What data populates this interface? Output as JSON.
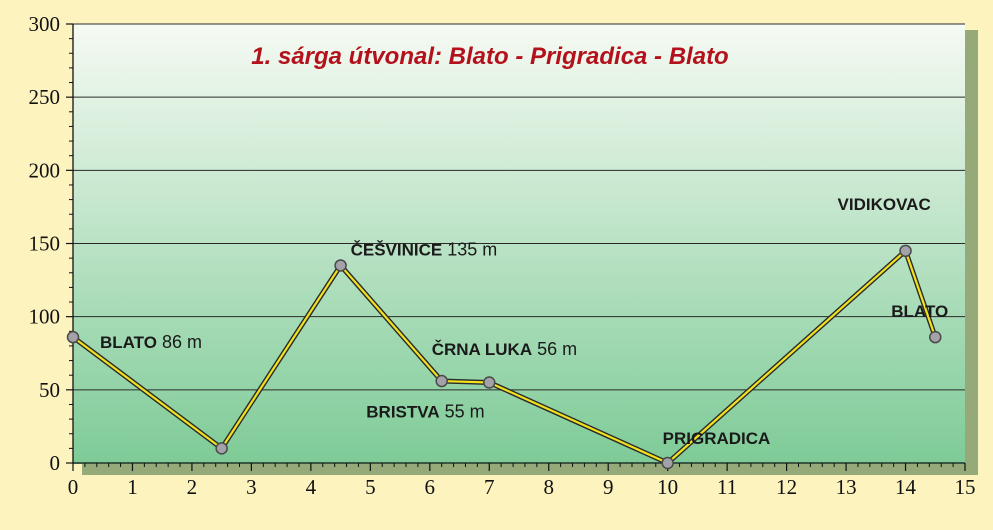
{
  "chart_data": {
    "type": "line",
    "title": "1. sárga útvonal: Blato - Prigradica - Blato",
    "xlabel": "",
    "ylabel": "",
    "xlim": [
      0,
      15
    ],
    "ylim": [
      0,
      300
    ],
    "x_ticks": [
      0,
      1,
      2,
      3,
      4,
      5,
      6,
      7,
      8,
      9,
      10,
      11,
      12,
      13,
      14,
      15
    ],
    "y_ticks": [
      0,
      50,
      100,
      150,
      200,
      250,
      300
    ],
    "grid": "horizontal",
    "series": [
      {
        "x": [
          0,
          2.5,
          4.5,
          6.2,
          7,
          10,
          14,
          14.5
        ],
        "y": [
          86,
          10,
          135,
          56,
          55,
          0,
          145,
          86
        ]
      }
    ],
    "annotations": [
      {
        "name": "BLATO",
        "elevation": "86 m",
        "x": 0,
        "y": 86
      },
      {
        "name": "ČEŠVINICE",
        "elevation": "135 m",
        "x": 4.5,
        "y": 135
      },
      {
        "name": "ČRNA LUKA",
        "elevation": "56 m",
        "x": 6.2,
        "y": 56
      },
      {
        "name": "BRISTVA",
        "elevation": "55 m",
        "x": 7,
        "y": 55
      },
      {
        "name": "PRIGRADICA",
        "elevation": "",
        "x": 10,
        "y": 0
      },
      {
        "name": "VIDIKOVAC",
        "elevation": "",
        "x": 14,
        "y": 145
      },
      {
        "name": "BLATO",
        "elevation": "",
        "x": 14.5,
        "y": 86
      }
    ],
    "colors": {
      "background": "#fcf3bf",
      "plot_top": "#f6faf3",
      "plot_bottom": "#7ecb97",
      "grid": "#2a2a2a",
      "line_outer": "#2b2b2b",
      "line_inner": "#f2e21e",
      "marker_fill": "#a2a2a8",
      "marker_stroke": "#4a4a4a",
      "title": "#b3121c"
    }
  }
}
